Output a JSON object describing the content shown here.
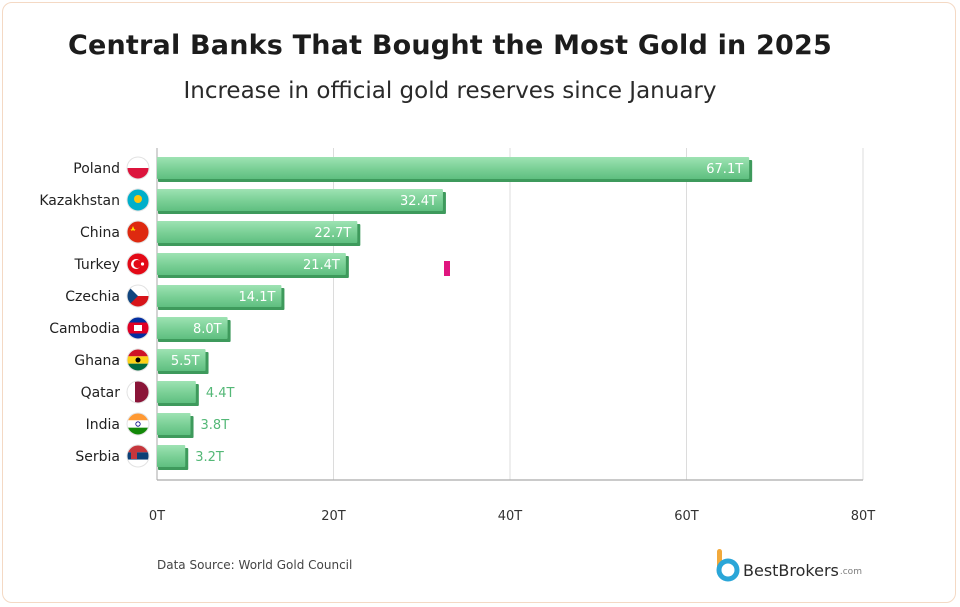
{
  "chart_data": {
    "type": "bar",
    "orientation": "horizontal",
    "title": "Central Banks That Bought the Most Gold in 2025",
    "subtitle": "Increase in official gold reserves since January",
    "categories": [
      "Poland",
      "Kazakhstan",
      "China",
      "Turkey",
      "Czechia",
      "Cambodia",
      "Ghana",
      "Qatar",
      "India",
      "Serbia"
    ],
    "values": [
      67.1,
      32.4,
      22.7,
      21.4,
      14.1,
      8.0,
      5.5,
      4.4,
      3.8,
      3.2
    ],
    "data_labels": [
      "67.1T",
      "32.4T",
      "22.7T",
      "21.4T",
      "14.1T",
      "8.0T",
      "5.5T",
      "4.4T",
      "3.8T",
      "3.2T"
    ],
    "xlim": [
      0,
      80
    ],
    "x_ticks": [
      0,
      20,
      40,
      60,
      80
    ],
    "x_tick_labels": [
      "0T",
      "20T",
      "40T",
      "60T",
      "80T"
    ],
    "xlabel": "",
    "ylabel": "",
    "grid": true,
    "bar_color": "#7fd39b",
    "bar_shadow_color": "#3e9a5c",
    "flag_icons": [
      "poland-flag-icon",
      "kazakhstan-flag-icon",
      "china-flag-icon",
      "turkey-flag-icon",
      "czechia-flag-icon",
      "cambodia-flag-icon",
      "ghana-flag-icon",
      "qatar-flag-icon",
      "india-flag-icon",
      "serbia-flag-icon"
    ]
  },
  "footer": {
    "source": "Data Source: World Gold Council",
    "brand_name": "BestBrokers",
    "brand_tld": ".com"
  }
}
